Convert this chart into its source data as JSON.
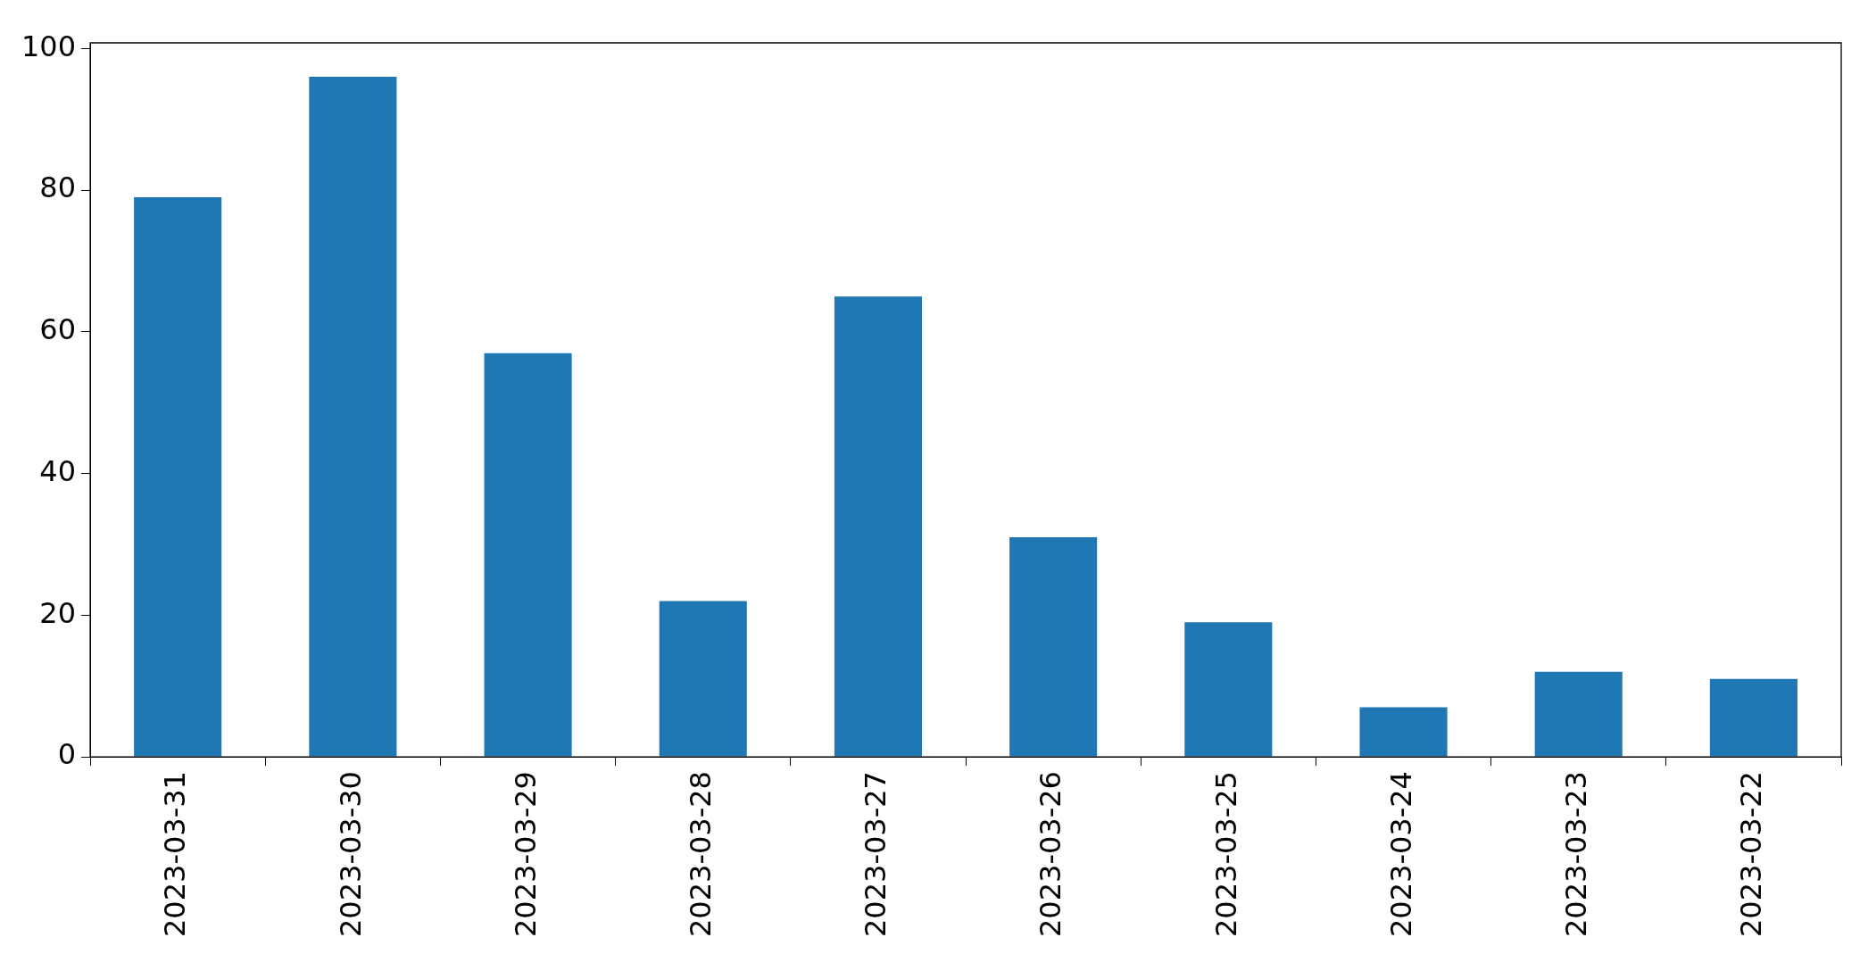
{
  "chart_data": {
    "type": "bar",
    "categories": [
      "2023-03-31",
      "2023-03-30",
      "2023-03-29",
      "2023-03-28",
      "2023-03-27",
      "2023-03-26",
      "2023-03-25",
      "2023-03-24",
      "2023-03-23",
      "2023-03-22"
    ],
    "values": [
      79,
      96,
      57,
      22,
      65,
      31,
      19,
      7,
      12,
      11
    ],
    "color": "#1f77b4",
    "ylim": [
      0,
      100.8
    ],
    "yticks": [
      0,
      20,
      40,
      60,
      80,
      100
    ],
    "grid": false,
    "legend": false
  }
}
